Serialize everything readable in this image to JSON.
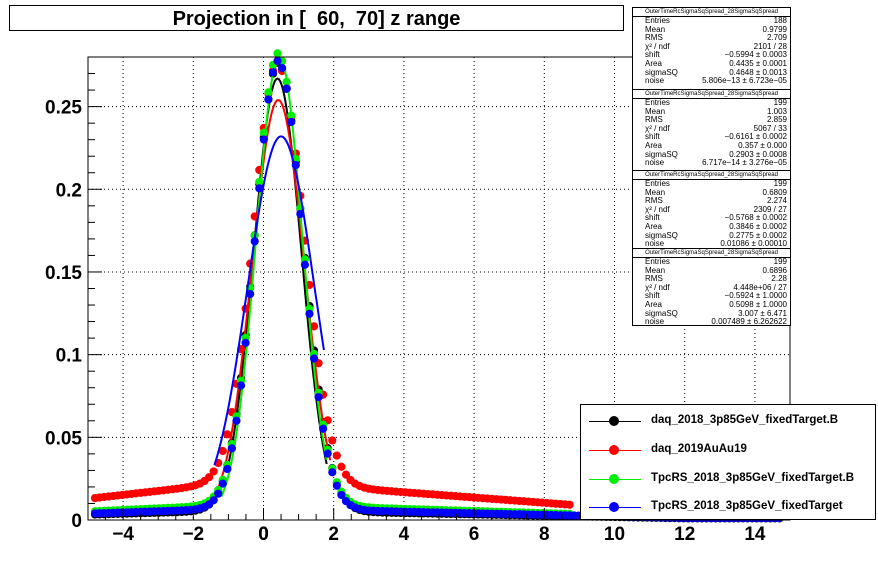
{
  "chart_data": {
    "type": "scatter",
    "title": "Projection in [  60,  70] z range",
    "xlim": [
      -5,
      15
    ],
    "ylim": [
      0,
      0.28
    ],
    "xticks": [
      -4,
      -2,
      0,
      2,
      4,
      6,
      8,
      10,
      12,
      14
    ],
    "yticks": [
      0.05,
      0.1,
      0.15,
      0.2,
      0.25
    ],
    "grid": true,
    "legend_position": "bottom-right",
    "series": [
      {
        "name": "daq_2018_3p85GeV_fixedTarget.B",
        "color": "#000000",
        "shift": 0.42,
        "sigma": 0.68,
        "amp": 0.27,
        "base": 0.005,
        "fit": {
          "center": 0.4,
          "sigma": 0.68,
          "amp": 0.265,
          "xmin": -1.0,
          "xmax": 1.8
        }
      },
      {
        "name": "daq_2019AuAu19",
        "color": "#ff0000",
        "shift": 0.42,
        "sigma": 0.7,
        "amp": 0.252,
        "base": 0.02,
        "fit": {
          "center": 0.42,
          "sigma": 0.74,
          "amp": 0.252,
          "xmin": -1.5,
          "xmax": 1.9
        }
      },
      {
        "name": "TpcRS_2018_3p85GeV_fixedTarget.B",
        "color": "#00ee00",
        "shift": 0.42,
        "sigma": 0.66,
        "amp": 0.272,
        "base": 0.008,
        "fit": {
          "center": 0.45,
          "sigma": 0.66,
          "amp": 0.278,
          "xmin": -1.2,
          "xmax": 1.8
        }
      },
      {
        "name": "TpcRS_2018_3p85GeV_fixedTarget",
        "color": "#0000ff",
        "shift": 0.42,
        "sigma": 0.66,
        "amp": 0.27,
        "base": 0.006,
        "fit": {
          "center": 0.5,
          "sigma": 0.95,
          "amp": 0.23,
          "xmin": -1.4,
          "xmax": 1.75
        }
      }
    ]
  },
  "stats_boxes": [
    {
      "name": "OuterTimeRcSigmaSqSpread_28SigmaSqSpread",
      "rows": [
        [
          "Entries",
          "188"
        ],
        [
          "Mean",
          "0.9799"
        ],
        [
          "RMS",
          "2.709"
        ],
        [
          "χ² / ndf",
          "2101 / 28"
        ],
        [
          "shift",
          "−0.5994 ± 0.0003"
        ],
        [
          "Area",
          "0.4435 ± 0.0001"
        ],
        [
          "sigmaSQ",
          "0.4648 ± 0.0013"
        ],
        [
          "noise",
          "5.806e−13 ± 6.723e−05"
        ]
      ]
    },
    {
      "name": "OuterTimeRcSigmaSqSpread_28SigmaSqSpread",
      "rows": [
        [
          "Entries",
          "199"
        ],
        [
          "Mean",
          "1.003"
        ],
        [
          "RMS",
          "2.859"
        ],
        [
          "χ² / ndf",
          "5067 / 33"
        ],
        [
          "shift",
          "−0.6161 ± 0.0002"
        ],
        [
          "Area",
          "0.357 ± 0.000"
        ],
        [
          "sigmaSQ",
          "0.2903 ± 0.0008"
        ],
        [
          "noise",
          "6.717e−14 ± 3.276e−05"
        ]
      ]
    },
    {
      "name": "OuterTimeRcSigmaSqSpread_28SigmaSqSpread",
      "rows": [
        [
          "Entries",
          "199"
        ],
        [
          "Mean",
          "0.6809"
        ],
        [
          "RMS",
          "2.274"
        ],
        [
          "χ² / ndf",
          "2309 / 27"
        ],
        [
          "shift",
          "−0.5768 ± 0.0002"
        ],
        [
          "Area",
          "0.3846 ± 0.0002"
        ],
        [
          "sigmaSQ",
          "0.2775 ± 0.0002"
        ],
        [
          "noise",
          "0.01086 ± 0.00010"
        ]
      ]
    },
    {
      "name": "OuterTimeRcSigmaSqSpread_28SigmaSqSpread",
      "rows": [
        [
          "Entries",
          "199"
        ],
        [
          "Mean",
          "0.6896"
        ],
        [
          "RMS",
          "2.28"
        ],
        [
          "χ² / ndf",
          "4.448e+06 / 27"
        ],
        [
          "shift",
          "−0.5924 ± 1.0000"
        ],
        [
          "Area",
          "0.5098 ± 1.0000"
        ],
        [
          "sigmaSQ",
          "3.007 ± 6.471"
        ],
        [
          "noise",
          "0.007489 ± 6.262622"
        ]
      ]
    }
  ]
}
